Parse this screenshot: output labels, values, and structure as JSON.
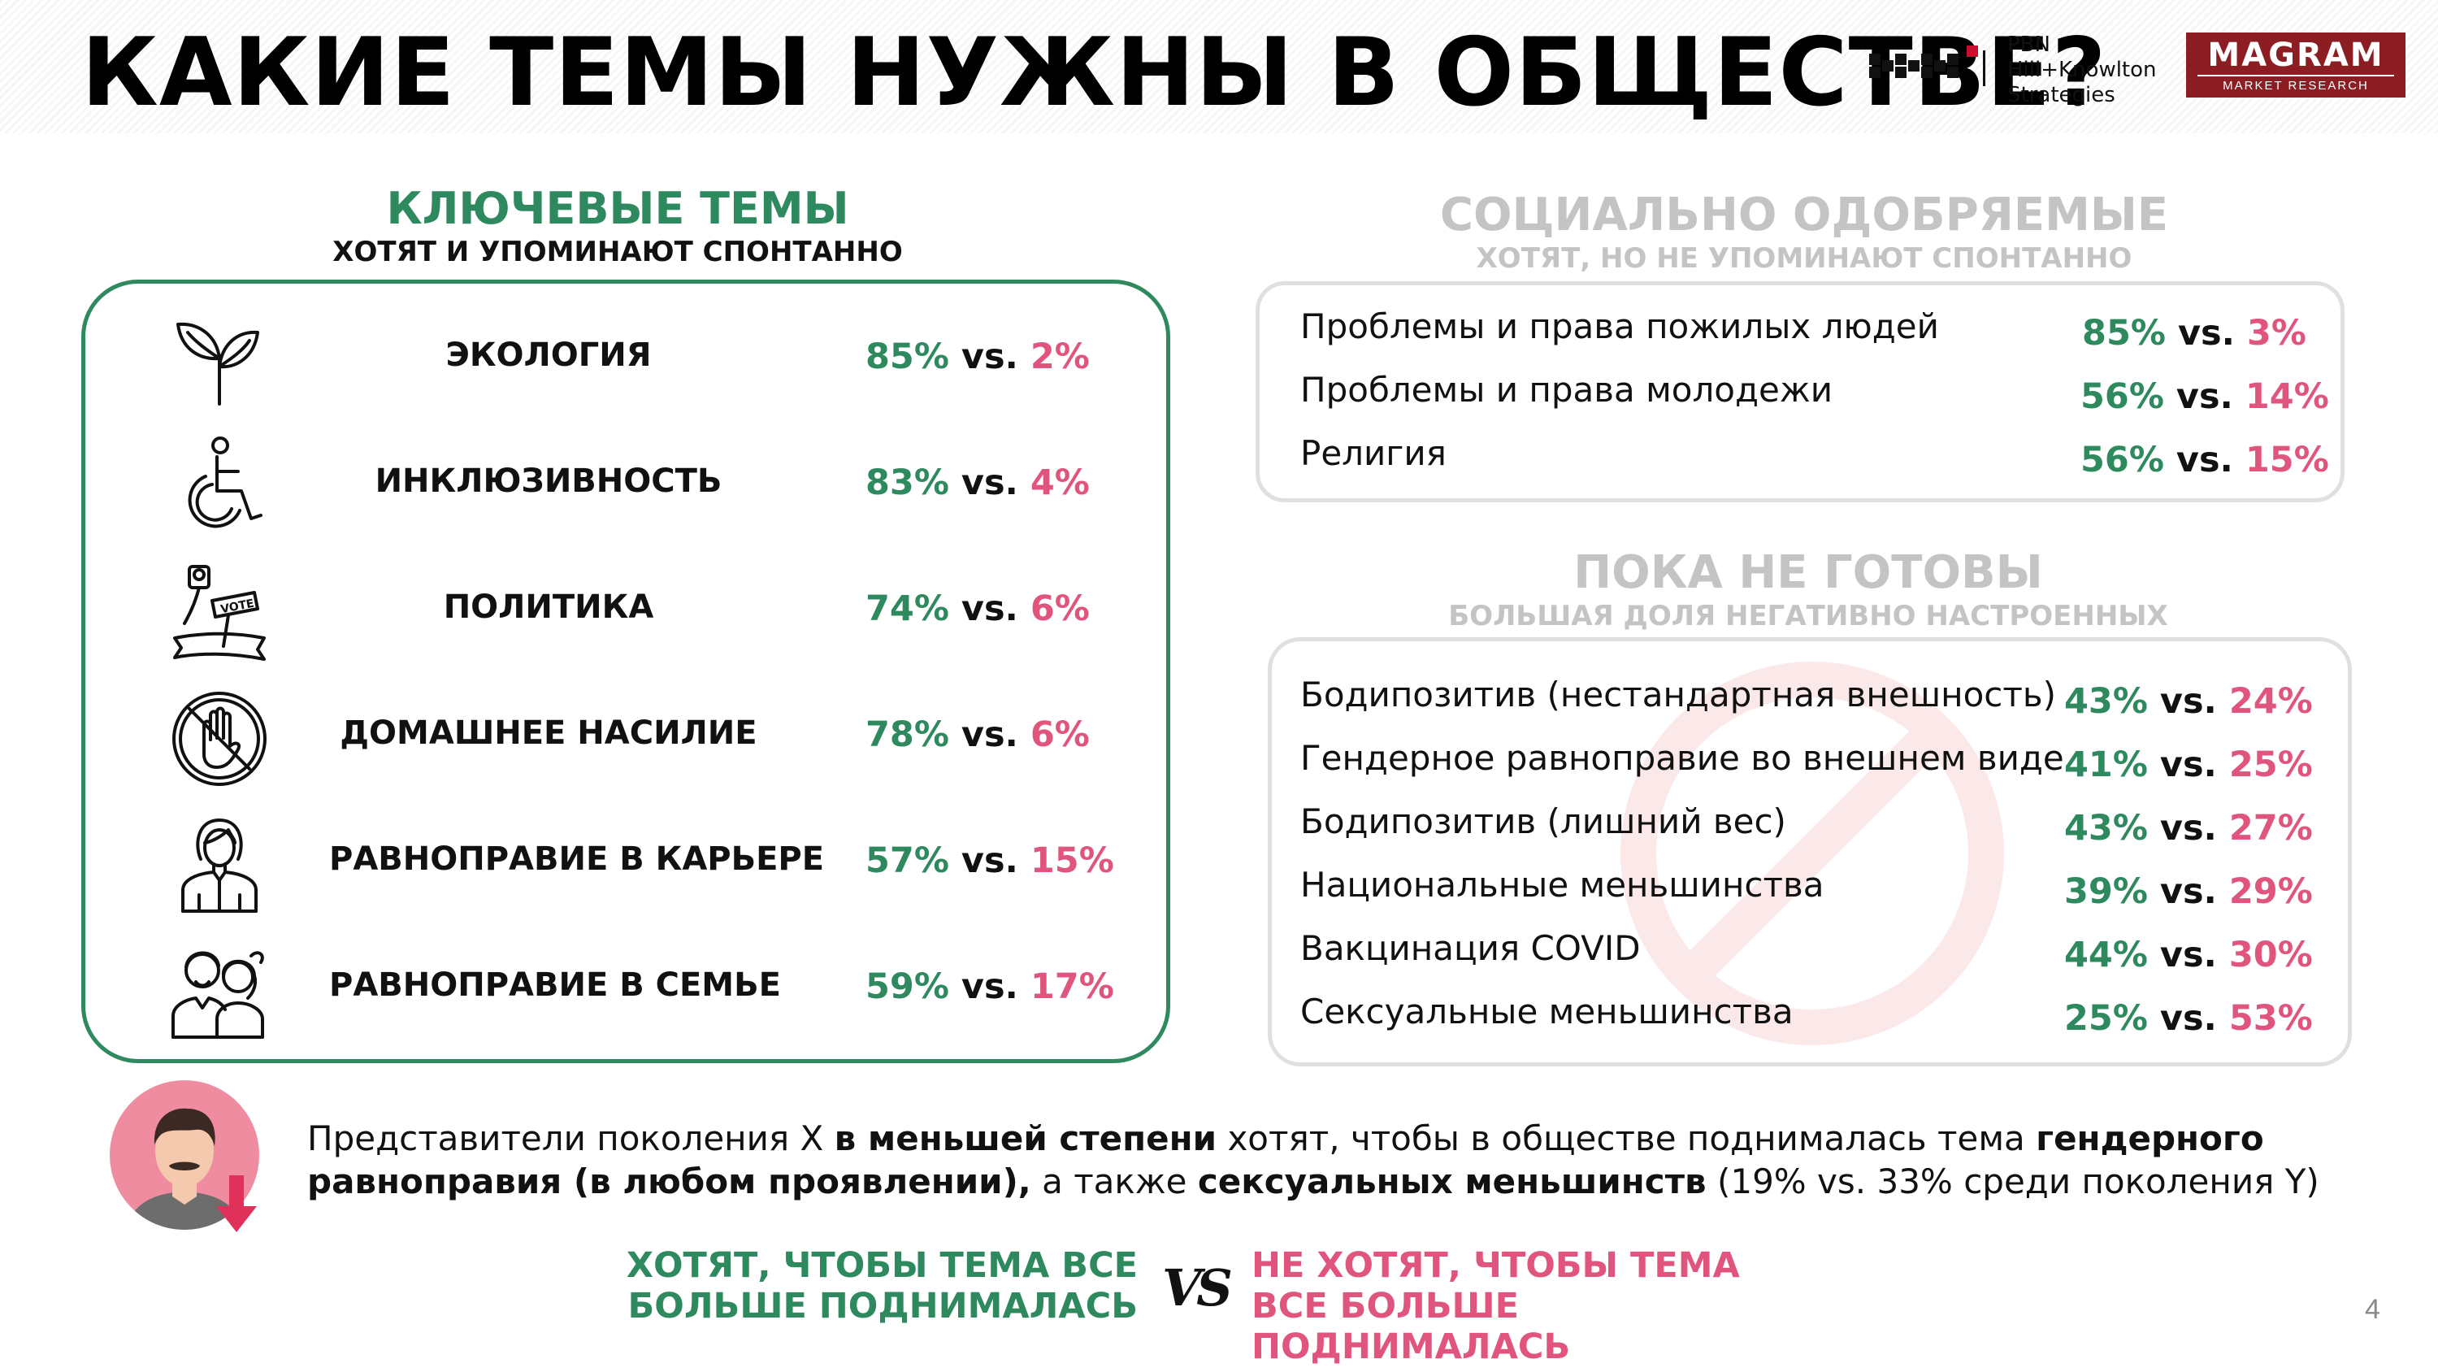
{
  "header": {
    "title": "КАКИЕ ТЕМЫ НУЖНЫ В ОБЩЕСТВЕ?",
    "pbn_logo": {
      "line1": "PBN",
      "line2": "Hill+Knowlton",
      "line3": "Strategies",
      "accent": "#c8102e"
    },
    "magram_logo": {
      "name": "MAGRAM",
      "tagline": "MARKET RESEARCH",
      "color": "#8c1d22"
    }
  },
  "colors": {
    "green": "#2e8a5e",
    "pink": "#e0557e",
    "muted": "#c4c4c4"
  },
  "key_topics": {
    "title": "КЛЮЧЕВЫЕ ТЕМЫ",
    "subtitle": "ХОТЯТ И УПОМИНАЮТ СПОНТАННО",
    "items": [
      {
        "icon": "plant-sprout-icon",
        "label": "ЭКОЛОГИЯ",
        "want": "85%",
        "vs": "vs.",
        "not_want": "2%"
      },
      {
        "icon": "wheelchair-icon",
        "label": "ИНКЛЮЗИВНОСТЬ",
        "want": "83%",
        "vs": "vs.",
        "not_want": "4%"
      },
      {
        "icon": "vote-sign-icon",
        "label": "ПОЛИТИКА",
        "want": "74%",
        "vs": "vs.",
        "not_want": "6%"
      },
      {
        "icon": "stop-hand-icon",
        "label": "ДОМАШНЕЕ НАСИЛИЕ",
        "want": "78%",
        "vs": "vs.",
        "not_want": "6%"
      },
      {
        "icon": "businesswoman-icon",
        "label": "РАВНОПРАВИЕ В КАРЬЕРЕ",
        "want": "57%",
        "vs": "vs.",
        "not_want": "15%"
      },
      {
        "icon": "couple-icon",
        "label": "РАВНОПРАВИЕ В СЕМЬЕ",
        "want": "59%",
        "vs": "vs.",
        "not_want": "17%"
      }
    ]
  },
  "socially_approved": {
    "title": "СОЦИАЛЬНО ОДОБРЯЕМЫЕ",
    "subtitle": "ХОТЯТ, НО НЕ УПОМИНАЮТ СПОНТАННО",
    "items": [
      {
        "label": "Проблемы и права пожилых людей",
        "want": "85%",
        "vs": "vs.",
        "not_want": "3%"
      },
      {
        "label": "Проблемы и права молодежи",
        "want": "56%",
        "vs": "vs.",
        "not_want": "14%"
      },
      {
        "label": "Религия",
        "want": "56%",
        "vs": "vs.",
        "not_want": "15%"
      }
    ]
  },
  "not_ready": {
    "title": "ПОКА НЕ ГОТОВЫ",
    "subtitle": "БОЛЬШАЯ ДОЛЯ НЕГАТИВНО НАСТРОЕННЫХ",
    "items": [
      {
        "label": "Бодипозитив (нестандартная внешность)",
        "want": "43%",
        "vs": "vs.",
        "not_want": "24%"
      },
      {
        "label": "Гендерное равноправие во внешнем виде",
        "want": "41%",
        "vs": "vs.",
        "not_want": "25%"
      },
      {
        "label": "Бодипозитив  (лишний вес)",
        "want": "43%",
        "vs": "vs.",
        "not_want": "27%"
      },
      {
        "label": "Национальные меньшинства",
        "want": "39%",
        "vs": "vs.",
        "not_want": "29%"
      },
      {
        "label": "Вакцинация COVID",
        "want": "44%",
        "vs": "vs.",
        "not_want": "30%"
      },
      {
        "label": "Сексуальные меньшинства",
        "want": "25%",
        "vs": "vs.",
        "not_want": "53%"
      }
    ]
  },
  "note": {
    "p1": "Представители поколения X ",
    "b1": "в меньшей степени",
    "p2": " хотят, чтобы в обществе поднималась тема ",
    "b2": "гендерного равноправия (в любом проявлении),",
    "p3": " а также ",
    "b3": "сексуальных меньшинств",
    "p4": " (19% vs. 33% среди поколения Y)"
  },
  "legend": {
    "want": "ХОТЯТ, ЧТОБЫ ТЕМА ВСЕ БОЛЬШЕ ПОДНИМАЛАСЬ",
    "vs": "VS",
    "not_want": "НЕ ХОТЯТ, ЧТОБЫ ТЕМА ВСЕ БОЛЬШЕ ПОДНИМАЛАСЬ"
  },
  "page_number": "4"
}
